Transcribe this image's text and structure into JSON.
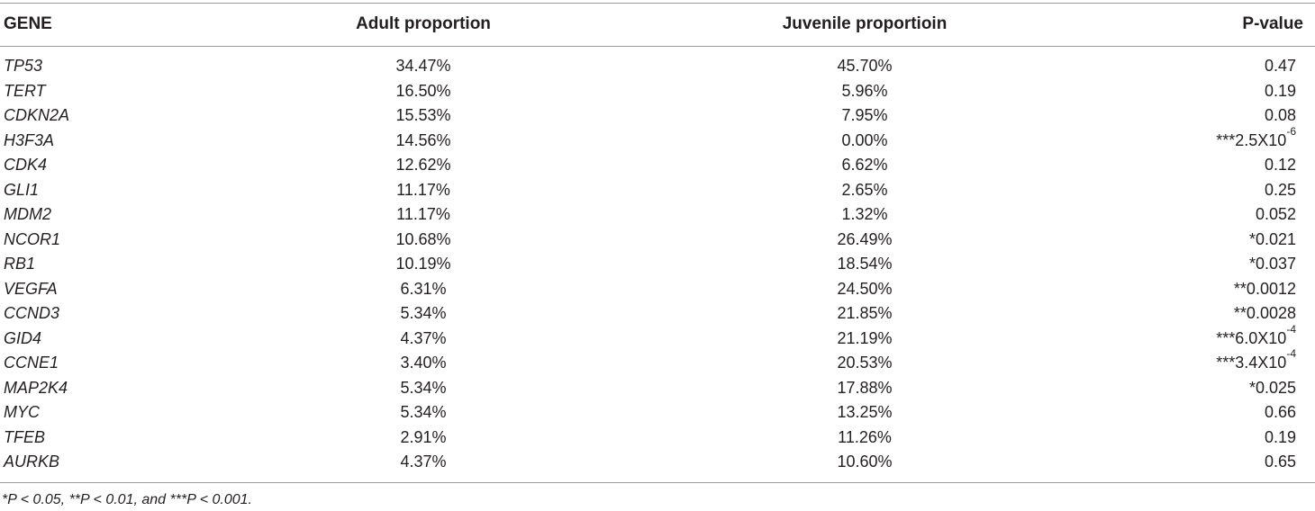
{
  "table": {
    "headers": {
      "gene": "GENE",
      "adult": "Adult proportion",
      "juvenile": "Juvenile proportioin",
      "pvalue": "P-value"
    },
    "rows": [
      {
        "gene": "TP53",
        "adult": "34.47%",
        "juvenile": "45.70%",
        "pvalue": "0.47",
        "pvalue_exp": ""
      },
      {
        "gene": "TERT",
        "adult": "16.50%",
        "juvenile": "5.96%",
        "pvalue": "0.19",
        "pvalue_exp": ""
      },
      {
        "gene": "CDKN2A",
        "adult": "15.53%",
        "juvenile": "7.95%",
        "pvalue": "0.08",
        "pvalue_exp": ""
      },
      {
        "gene": "H3F3A",
        "adult": "14.56%",
        "juvenile": "0.00%",
        "pvalue": "***2.5X10",
        "pvalue_exp": "-6"
      },
      {
        "gene": "CDK4",
        "adult": "12.62%",
        "juvenile": "6.62%",
        "pvalue": "0.12",
        "pvalue_exp": ""
      },
      {
        "gene": "GLI1",
        "adult": "11.17%",
        "juvenile": "2.65%",
        "pvalue": "0.25",
        "pvalue_exp": ""
      },
      {
        "gene": "MDM2",
        "adult": "11.17%",
        "juvenile": "1.32%",
        "pvalue": "0.052",
        "pvalue_exp": ""
      },
      {
        "gene": "NCOR1",
        "adult": "10.68%",
        "juvenile": "26.49%",
        "pvalue": "*0.021",
        "pvalue_exp": ""
      },
      {
        "gene": "RB1",
        "adult": "10.19%",
        "juvenile": "18.54%",
        "pvalue": "*0.037",
        "pvalue_exp": ""
      },
      {
        "gene": "VEGFA",
        "adult": "6.31%",
        "juvenile": "24.50%",
        "pvalue": "**0.0012",
        "pvalue_exp": ""
      },
      {
        "gene": "CCND3",
        "adult": "5.34%",
        "juvenile": "21.85%",
        "pvalue": "**0.0028",
        "pvalue_exp": ""
      },
      {
        "gene": "GID4",
        "adult": "4.37%",
        "juvenile": "21.19%",
        "pvalue": "***6.0X10",
        "pvalue_exp": "-4"
      },
      {
        "gene": "CCNE1",
        "adult": "3.40%",
        "juvenile": "20.53%",
        "pvalue": "***3.4X10",
        "pvalue_exp": "-4"
      },
      {
        "gene": "MAP2K4",
        "adult": "5.34%",
        "juvenile": "17.88%",
        "pvalue": "*0.025",
        "pvalue_exp": ""
      },
      {
        "gene": "MYC",
        "adult": "5.34%",
        "juvenile": "13.25%",
        "pvalue": "0.66",
        "pvalue_exp": ""
      },
      {
        "gene": "TFEB",
        "adult": "2.91%",
        "juvenile": "11.26%",
        "pvalue": "0.19",
        "pvalue_exp": ""
      },
      {
        "gene": "AURKB",
        "adult": "4.37%",
        "juvenile": "10.60%",
        "pvalue": "0.65",
        "pvalue_exp": ""
      }
    ]
  },
  "footnote": "*P < 0.05, **P < 0.01, and ***P < 0.001."
}
